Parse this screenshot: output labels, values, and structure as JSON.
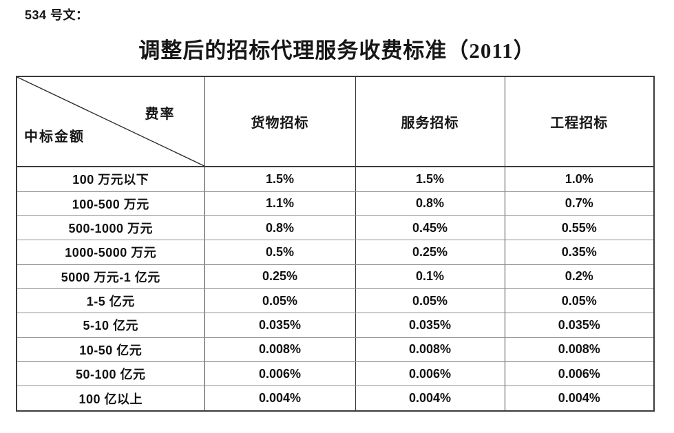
{
  "doc": {
    "ref_label": "534 号文：",
    "title": "调整后的招标代理服务收费标准（2011）"
  },
  "table": {
    "corner_top_right": "费率",
    "corner_bottom_left": "中标金额",
    "columns": [
      "货物招标",
      "服务招标",
      "工程招标"
    ],
    "rows": [
      {
        "label": "100 万元以下",
        "values": [
          "1.5%",
          "1.5%",
          "1.0%"
        ]
      },
      {
        "label": "100-500 万元",
        "values": [
          "1.1%",
          "0.8%",
          "0.7%"
        ]
      },
      {
        "label": "500-1000 万元",
        "values": [
          "0.8%",
          "0.45%",
          "0.55%"
        ]
      },
      {
        "label": "1000-5000 万元",
        "values": [
          "0.5%",
          "0.25%",
          "0.35%"
        ]
      },
      {
        "label": "5000 万元-1 亿元",
        "values": [
          "0.25%",
          "0.1%",
          "0.2%"
        ]
      },
      {
        "label": "1-5 亿元",
        "values": [
          "0.05%",
          "0.05%",
          "0.05%"
        ]
      },
      {
        "label": "5-10 亿元",
        "values": [
          "0.035%",
          "0.035%",
          "0.035%"
        ]
      },
      {
        "label": "10-50 亿元",
        "values": [
          "0.008%",
          "0.008%",
          "0.008%"
        ]
      },
      {
        "label": "50-100 亿元",
        "values": [
          "0.006%",
          "0.006%",
          "0.006%"
        ]
      },
      {
        "label": "100 亿以上",
        "values": [
          "0.004%",
          "0.004%",
          "0.004%"
        ]
      }
    ],
    "line_color": "#3c3c3c",
    "grid_color": "#8e8e8e"
  }
}
